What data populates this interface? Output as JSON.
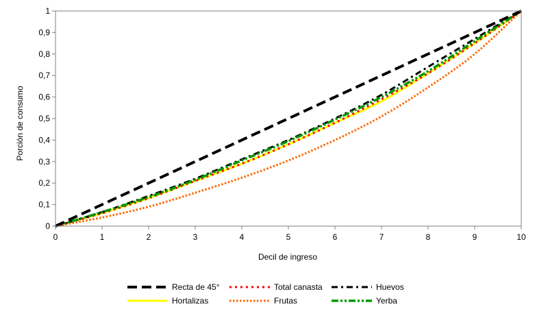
{
  "chart_data": {
    "type": "line",
    "title": "",
    "xlabel": "Decil de ingreso",
    "ylabel": "Porción de consumo",
    "xlim": [
      0,
      10
    ],
    "ylim": [
      0,
      1
    ],
    "x_ticks": [
      "0",
      "1",
      "2",
      "3",
      "4",
      "5",
      "6",
      "7",
      "8",
      "9",
      "10"
    ],
    "y_ticks": [
      "0",
      "0,1",
      "0,2",
      "0,3",
      "0,4",
      "0,5",
      "0,6",
      "0,7",
      "0,8",
      "0,9",
      "1"
    ],
    "grid": false,
    "legend_position": "bottom",
    "x": [
      0,
      1,
      2,
      3,
      4,
      5,
      6,
      7,
      8,
      9,
      10
    ],
    "series": [
      {
        "name": "Recta de 45°",
        "color": "#000000",
        "style": "long-dash",
        "values": [
          0,
          0.1,
          0.2,
          0.3,
          0.4,
          0.5,
          0.6,
          0.7,
          0.8,
          0.9,
          1
        ]
      },
      {
        "name": "Total canasta",
        "color": "#ff0000",
        "style": "dotted",
        "values": [
          0,
          0.06,
          0.13,
          0.21,
          0.29,
          0.38,
          0.48,
          0.59,
          0.71,
          0.85,
          1
        ]
      },
      {
        "name": "Huevos",
        "color": "#000000",
        "style": "dash-dot",
        "values": [
          0,
          0.065,
          0.14,
          0.22,
          0.31,
          0.4,
          0.5,
          0.61,
          0.74,
          0.87,
          1
        ]
      },
      {
        "name": "Hortalizas",
        "color": "#ffff00",
        "style": "solid",
        "values": [
          0,
          0.06,
          0.13,
          0.21,
          0.29,
          0.38,
          0.48,
          0.58,
          0.71,
          0.85,
          1
        ]
      },
      {
        "name": "Frutas",
        "color": "#ff6600",
        "style": "dense-dotted",
        "values": [
          0,
          0.04,
          0.09,
          0.155,
          0.225,
          0.305,
          0.4,
          0.51,
          0.645,
          0.8,
          1
        ]
      },
      {
        "name": "Yerba",
        "color": "#009900",
        "style": "dash-dot-dot",
        "values": [
          0,
          0.065,
          0.135,
          0.215,
          0.305,
          0.395,
          0.495,
          0.6,
          0.72,
          0.86,
          1
        ]
      }
    ]
  }
}
